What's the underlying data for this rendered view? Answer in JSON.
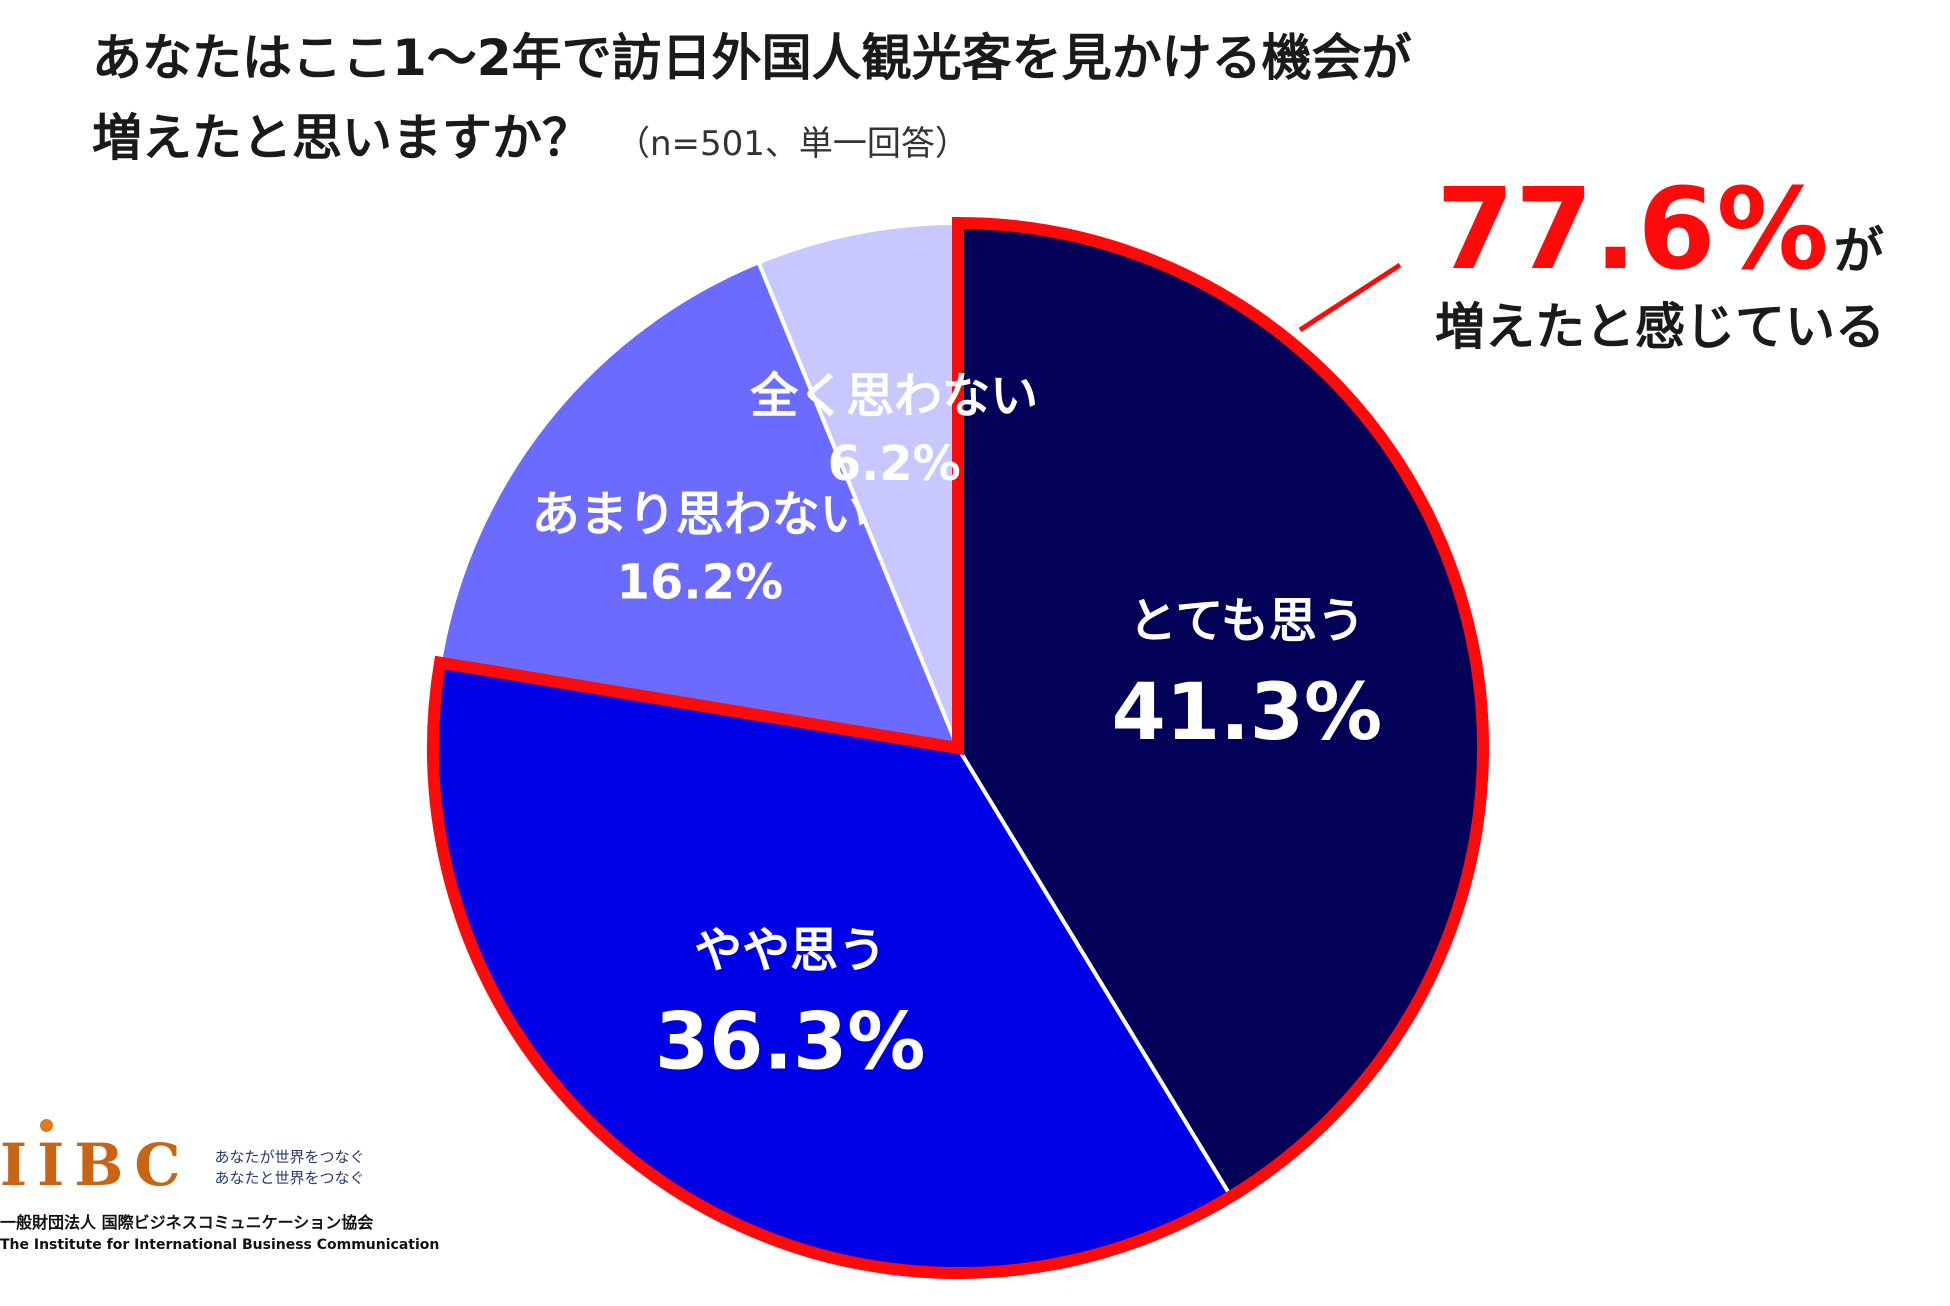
{
  "title": {
    "line1": "あなたはここ1～2年で訪日外国人観光客を見かける機会が",
    "line2": "増えたと思いますか？",
    "note": "（n=501、単一回答）"
  },
  "callout": {
    "percent": "77.6%",
    "suffix": "が",
    "line2": "増えたと感じている",
    "color": "#ff0a0a"
  },
  "chart_data": {
    "type": "pie",
    "start": "12 o'clock, clockwise",
    "slices": [
      {
        "label": "とても思う",
        "value_label": "41.3%",
        "value": 41.3,
        "color": "#030057"
      },
      {
        "label": "やや思う",
        "value_label": "36.3%",
        "value": 36.3,
        "color": "#0000e6"
      },
      {
        "label": "あまり思わない",
        "value_label": "16.2%",
        "value": 16.2,
        "color": "#6b6bff"
      },
      {
        "label": "全く思わない",
        "value_label": "6.2%",
        "value": 6.2,
        "color": "#c8c8ff"
      }
    ],
    "highlight": {
      "slices": [
        "とても思う",
        "やや思う"
      ],
      "outline_color": "#ff0a0a"
    }
  },
  "logo": {
    "mark": "IIBC",
    "tagline1": "あなたが世界をつなぐ",
    "tagline2": "あなたと世界をつなぐ",
    "org_ja": "一般財団法人 国際ビジネスコミュニケーション協会",
    "org_en": "The Institute for International Business Communication",
    "brand_color": "#c86414"
  }
}
